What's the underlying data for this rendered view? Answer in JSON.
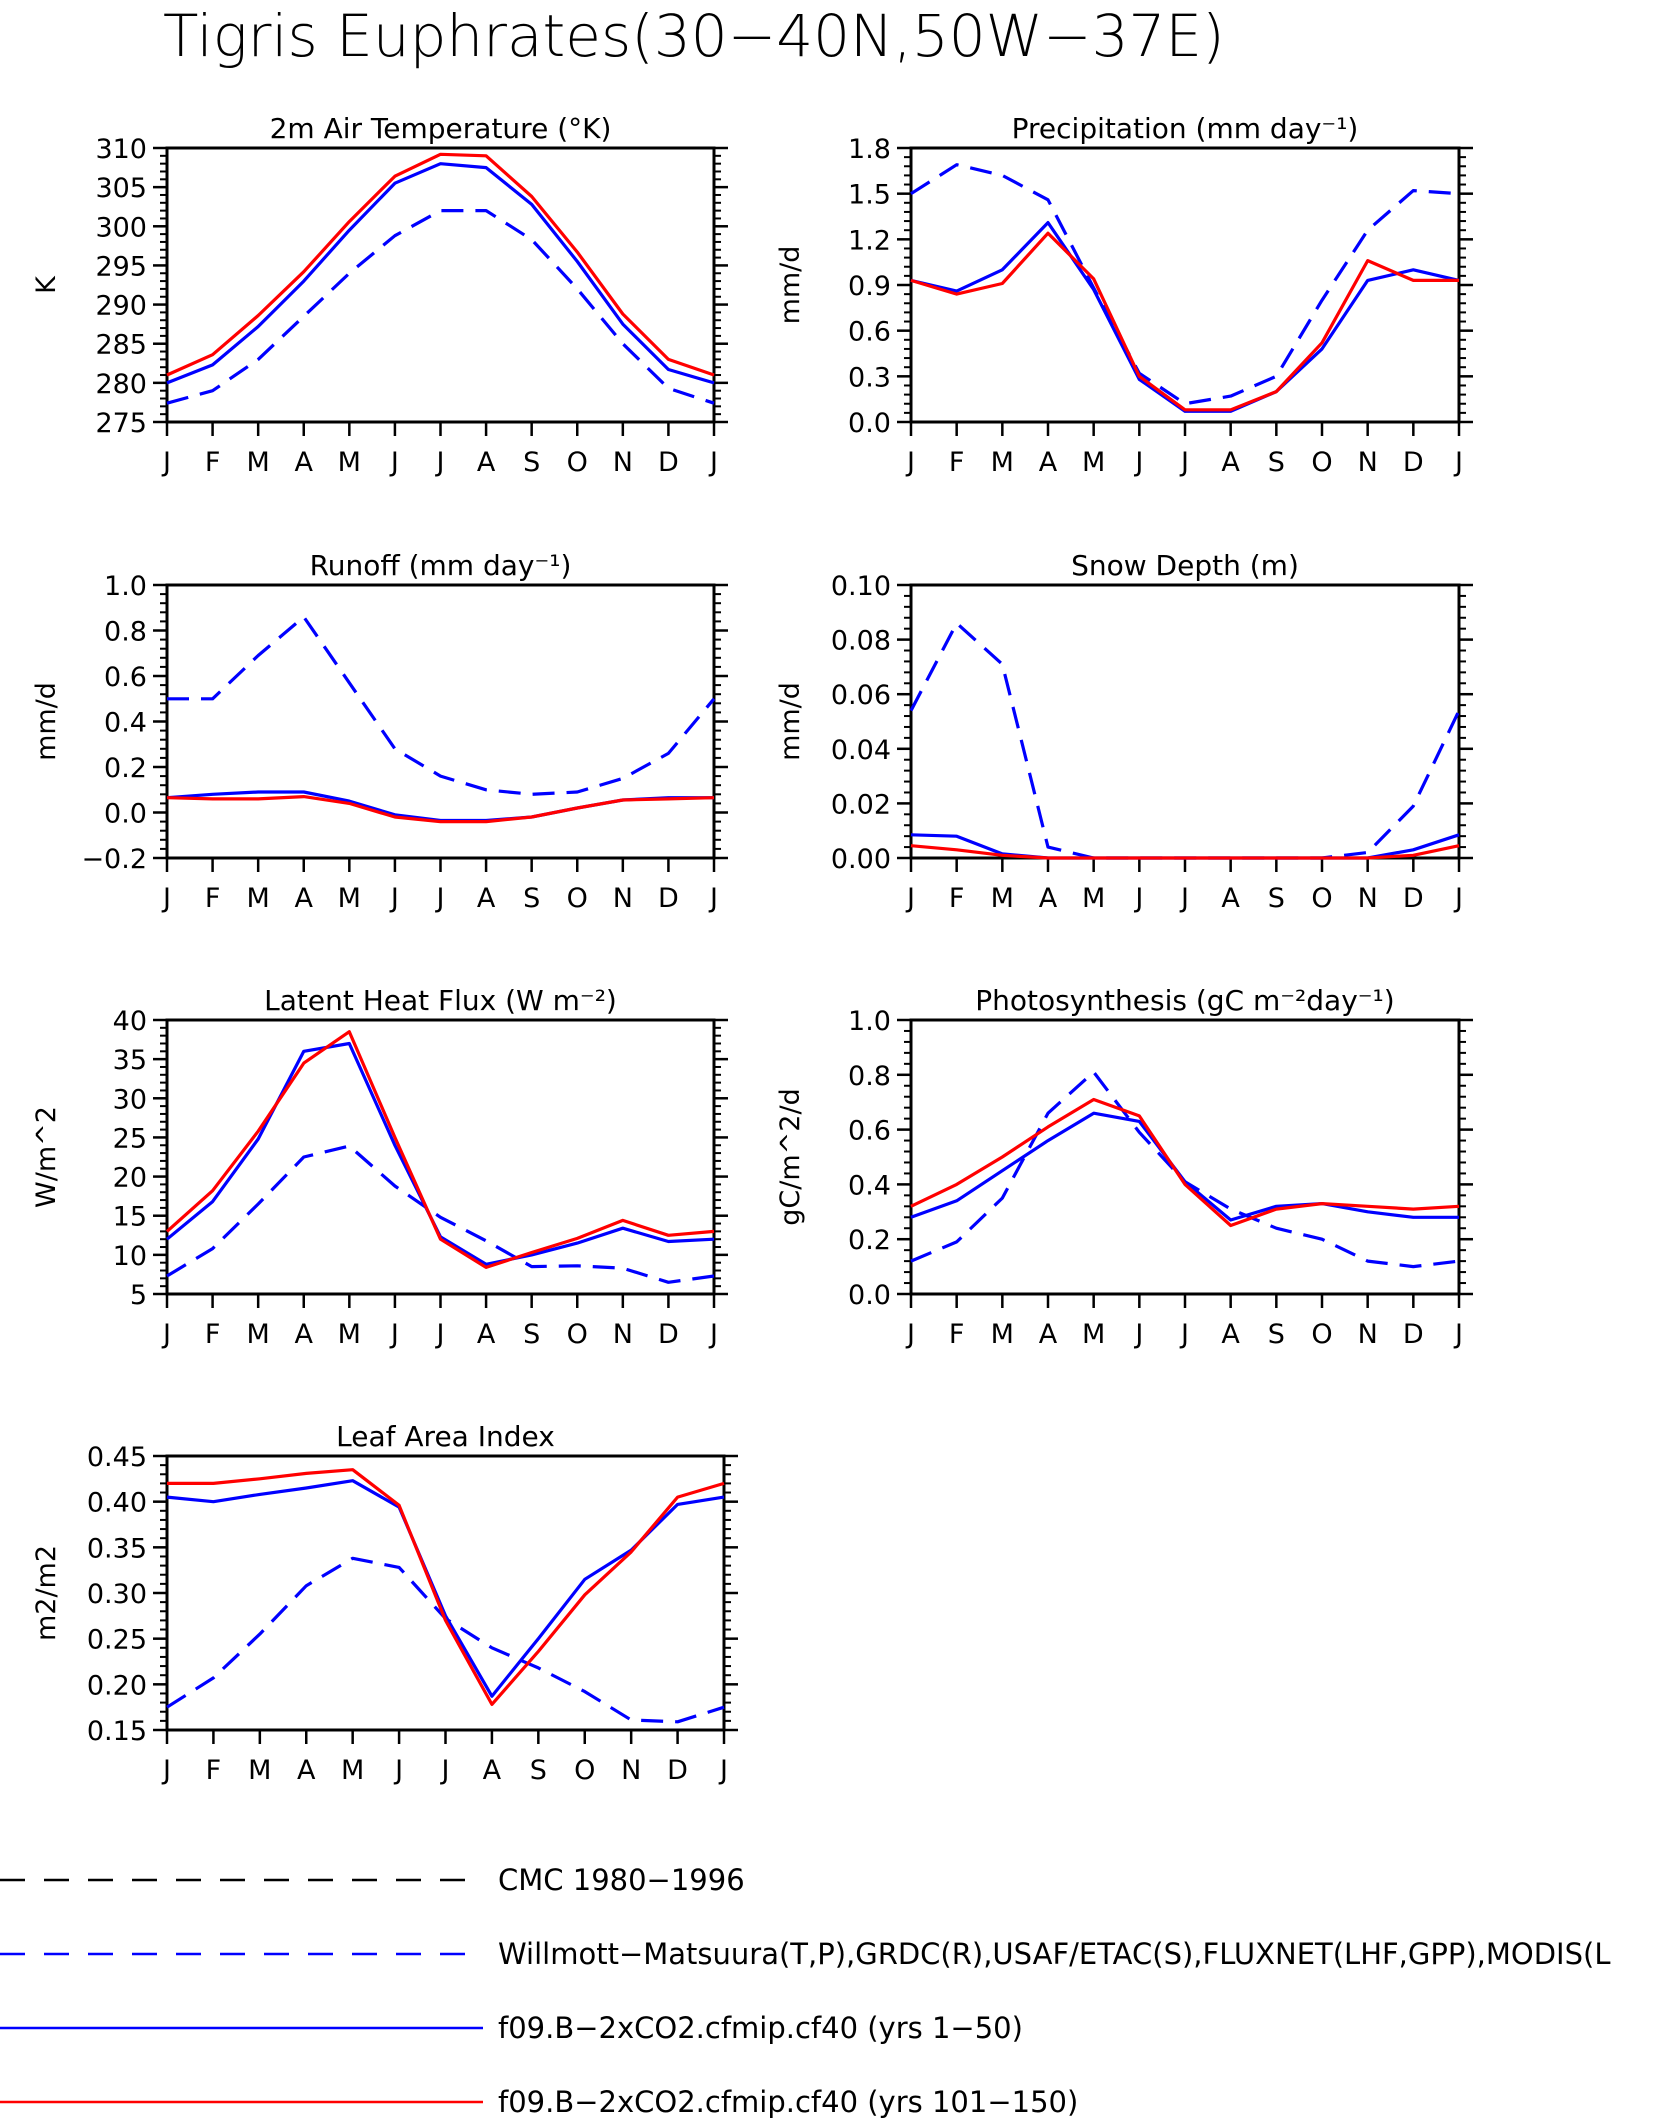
{
  "figure_title": "Tigris Euphrates(30−40N,50W−37E)",
  "months": [
    "J",
    "F",
    "M",
    "A",
    "M",
    "J",
    "J",
    "A",
    "S",
    "O",
    "N",
    "D",
    "J"
  ],
  "colors": {
    "obs": "#0000ff",
    "run1": "#0000ff",
    "run2": "#ff0000",
    "cmc": "#000000"
  },
  "legend": [
    {
      "label": "CMC 1980−1996",
      "style": "dashed",
      "color": "#000000"
    },
    {
      "label": "Willmott−Matsuura(T,P),GRDC(R),USAF/ETAC(S),FLUXNET(LHF,GPP),MODIS(L",
      "style": "dashed",
      "color": "#0000ff"
    },
    {
      "label": "f09.B−2xCO2.cfmip.cf40 (yrs 1−50)",
      "style": "solid",
      "color": "#0000ff"
    },
    {
      "label": "f09.B−2xCO2.cfmip.cf40 (yrs 101−150)",
      "style": "solid",
      "color": "#ff0000"
    }
  ],
  "chart_data": [
    {
      "type": "line",
      "title": "2m Air Temperature (°K)",
      "ylabel": "K",
      "ylim": [
        275,
        310
      ],
      "yticks": [
        "275",
        "280",
        "285",
        "290",
        "295",
        "300",
        "305",
        "310"
      ],
      "categories": [
        "J",
        "F",
        "M",
        "A",
        "M",
        "J",
        "J",
        "A",
        "S",
        "O",
        "N",
        "D",
        "J"
      ],
      "series": [
        {
          "style": "dashed",
          "color": "#0000ff",
          "values": [
            277.4,
            279.0,
            283.0,
            288.5,
            294.0,
            298.8,
            302.0,
            302.0,
            298.3,
            292.0,
            285.0,
            279.3,
            277.4
          ]
        },
        {
          "style": "solid",
          "color": "#0000ff",
          "values": [
            280.0,
            282.3,
            287.2,
            293.0,
            299.5,
            305.5,
            308.0,
            307.5,
            302.8,
            295.5,
            287.5,
            281.7,
            280.0
          ]
        },
        {
          "style": "solid",
          "color": "#ff0000",
          "values": [
            281.0,
            283.6,
            288.6,
            294.2,
            300.6,
            306.4,
            309.2,
            309.0,
            303.8,
            296.7,
            288.8,
            283.0,
            281.0
          ]
        }
      ]
    },
    {
      "type": "line",
      "title": "Precipitation (mm day⁻¹)",
      "ylabel": "mm/d",
      "ylim": [
        0.0,
        1.8
      ],
      "yticks": [
        "0.0",
        "0.3",
        "0.6",
        "0.9",
        "1.2",
        "1.5",
        "1.8"
      ],
      "categories": [
        "J",
        "F",
        "M",
        "A",
        "M",
        "J",
        "J",
        "A",
        "S",
        "O",
        "N",
        "D",
        "J"
      ],
      "series": [
        {
          "style": "dashed",
          "color": "#0000ff",
          "values": [
            1.5,
            1.69,
            1.62,
            1.46,
            0.88,
            0.32,
            0.12,
            0.17,
            0.3,
            0.8,
            1.26,
            1.52,
            1.5
          ]
        },
        {
          "style": "solid",
          "color": "#0000ff",
          "values": [
            0.93,
            0.86,
            1.0,
            1.31,
            0.87,
            0.28,
            0.07,
            0.07,
            0.2,
            0.48,
            0.93,
            1.0,
            0.93
          ]
        },
        {
          "style": "solid",
          "color": "#ff0000",
          "values": [
            0.93,
            0.84,
            0.91,
            1.24,
            0.94,
            0.3,
            0.08,
            0.08,
            0.2,
            0.52,
            1.06,
            0.93,
            0.93
          ]
        }
      ]
    },
    {
      "type": "line",
      "title": "Runoff (mm day⁻¹)",
      "ylabel": "mm/d",
      "ylim": [
        -0.2,
        1.0
      ],
      "yticks": [
        "−0.2",
        "0.0",
        "0.2",
        "0.4",
        "0.6",
        "0.8",
        "1.0"
      ],
      "categories": [
        "J",
        "F",
        "M",
        "A",
        "M",
        "J",
        "J",
        "A",
        "S",
        "O",
        "N",
        "D",
        "J"
      ],
      "series": [
        {
          "style": "dashed",
          "color": "#0000ff",
          "values": [
            0.5,
            0.5,
            0.69,
            0.86,
            0.57,
            0.28,
            0.16,
            0.1,
            0.08,
            0.09,
            0.15,
            0.26,
            0.5
          ]
        },
        {
          "style": "solid",
          "color": "#0000ff",
          "values": [
            0.065,
            0.08,
            0.09,
            0.09,
            0.05,
            -0.01,
            -0.035,
            -0.035,
            -0.02,
            0.02,
            0.055,
            0.065,
            0.065
          ]
        },
        {
          "style": "solid",
          "color": "#ff0000",
          "values": [
            0.065,
            0.06,
            0.06,
            0.07,
            0.04,
            -0.02,
            -0.04,
            -0.04,
            -0.02,
            0.02,
            0.055,
            0.06,
            0.065
          ]
        }
      ]
    },
    {
      "type": "line",
      "title": "Snow Depth (m)",
      "ylabel": "mm/d",
      "ylim": [
        0.0,
        0.1
      ],
      "yticks": [
        "0.00",
        "0.02",
        "0.04",
        "0.06",
        "0.08",
        "0.10"
      ],
      "categories": [
        "J",
        "F",
        "M",
        "A",
        "M",
        "J",
        "J",
        "A",
        "S",
        "O",
        "N",
        "D",
        "J"
      ],
      "series": [
        {
          "style": "dashed",
          "color": "#0000ff",
          "values": [
            0.054,
            0.086,
            0.071,
            0.004,
            0.0,
            0.0,
            0.0,
            0.0,
            0.0,
            0.0,
            0.002,
            0.019,
            0.054
          ]
        },
        {
          "style": "solid",
          "color": "#0000ff",
          "values": [
            0.0085,
            0.008,
            0.0015,
            0.0,
            0.0,
            0.0,
            0.0,
            0.0,
            0.0,
            0.0,
            0.0,
            0.003,
            0.0085
          ]
        },
        {
          "style": "solid",
          "color": "#ff0000",
          "values": [
            0.0045,
            0.003,
            0.001,
            0.0,
            0.0,
            0.0,
            0.0,
            0.0,
            0.0,
            0.0,
            0.0,
            0.001,
            0.0045
          ]
        }
      ]
    },
    {
      "type": "line",
      "title": "Latent Heat Flux (W m⁻²)",
      "ylabel": "W/m^2",
      "ylim": [
        5,
        40
      ],
      "yticks": [
        "5",
        "10",
        "15",
        "20",
        "25",
        "30",
        "35",
        "40"
      ],
      "categories": [
        "J",
        "F",
        "M",
        "A",
        "M",
        "J",
        "J",
        "A",
        "S",
        "O",
        "N",
        "D",
        "J"
      ],
      "series": [
        {
          "style": "dashed",
          "color": "#0000ff",
          "values": [
            7.3,
            10.8,
            16.5,
            22.5,
            23.9,
            18.8,
            14.8,
            11.8,
            8.5,
            8.6,
            8.3,
            6.5,
            7.3
          ]
        },
        {
          "style": "solid",
          "color": "#0000ff",
          "values": [
            12.0,
            16.8,
            24.8,
            36.0,
            37.0,
            24.0,
            12.3,
            8.8,
            10.0,
            11.5,
            13.4,
            11.7,
            12.0
          ]
        },
        {
          "style": "solid",
          "color": "#ff0000",
          "values": [
            13.0,
            18.2,
            25.8,
            34.5,
            38.5,
            25.0,
            12.0,
            8.4,
            10.3,
            12.1,
            14.4,
            12.5,
            13.0
          ]
        }
      ]
    },
    {
      "type": "line",
      "title": "Photosynthesis (gC m⁻²day⁻¹)",
      "ylabel": "gC/m^2/d",
      "ylim": [
        0.0,
        1.0
      ],
      "yticks": [
        "0.0",
        "0.2",
        "0.4",
        "0.6",
        "0.8",
        "1.0"
      ],
      "categories": [
        "J",
        "F",
        "M",
        "A",
        "M",
        "J",
        "J",
        "A",
        "S",
        "O",
        "N",
        "D",
        "J"
      ],
      "series": [
        {
          "style": "dashed",
          "color": "#0000ff",
          "values": [
            0.12,
            0.19,
            0.35,
            0.66,
            0.81,
            0.59,
            0.41,
            0.31,
            0.24,
            0.2,
            0.12,
            0.1,
            0.12
          ]
        },
        {
          "style": "solid",
          "color": "#0000ff",
          "values": [
            0.28,
            0.34,
            0.45,
            0.56,
            0.66,
            0.63,
            0.41,
            0.27,
            0.32,
            0.33,
            0.3,
            0.28,
            0.28
          ]
        },
        {
          "style": "solid",
          "color": "#ff0000",
          "values": [
            0.32,
            0.4,
            0.5,
            0.61,
            0.71,
            0.65,
            0.4,
            0.25,
            0.31,
            0.33,
            0.32,
            0.31,
            0.32
          ]
        }
      ]
    },
    {
      "type": "line",
      "title": "Leaf Area Index",
      "ylabel": "m2/m2",
      "ylim": [
        0.15,
        0.45
      ],
      "yticks": [
        "0.15",
        "0.20",
        "0.25",
        "0.30",
        "0.35",
        "0.40",
        "0.45"
      ],
      "categories": [
        "J",
        "F",
        "M",
        "A",
        "M",
        "J",
        "J",
        "A",
        "S",
        "O",
        "N",
        "D",
        "J"
      ],
      "series": [
        {
          "style": "dashed",
          "color": "#0000ff",
          "values": [
            0.175,
            0.207,
            0.255,
            0.308,
            0.338,
            0.328,
            0.272,
            0.24,
            0.218,
            0.192,
            0.161,
            0.159,
            0.175
          ]
        },
        {
          "style": "solid",
          "color": "#0000ff",
          "values": [
            0.405,
            0.4,
            0.408,
            0.415,
            0.423,
            0.394,
            0.275,
            0.187,
            0.25,
            0.315,
            0.347,
            0.397,
            0.405
          ]
        },
        {
          "style": "solid",
          "color": "#ff0000",
          "values": [
            0.42,
            0.42,
            0.425,
            0.431,
            0.435,
            0.396,
            0.27,
            0.178,
            0.236,
            0.298,
            0.345,
            0.405,
            0.42
          ]
        }
      ]
    }
  ]
}
